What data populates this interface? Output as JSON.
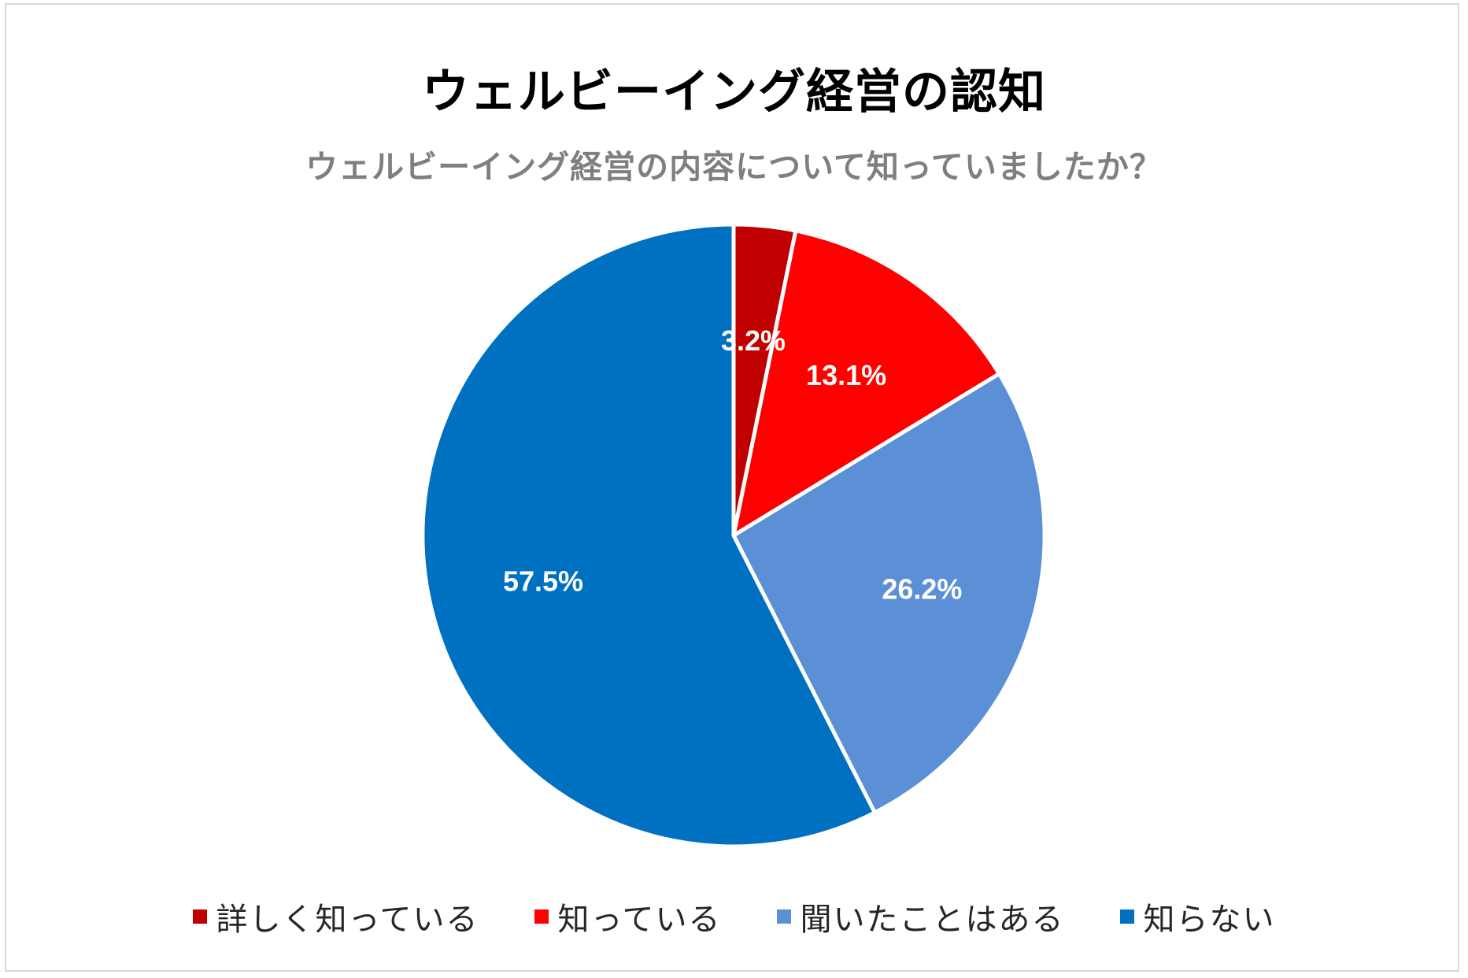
{
  "chart_data": {
    "type": "pie",
    "title": "ウェルビーイング経営の認知",
    "subtitle": "ウェルビーイング経営の内容について知っていましたか？",
    "categories": [
      "詳しく知っている",
      "知っている",
      "聞いたことはある",
      "知らない"
    ],
    "values": [
      3.2,
      13.1,
      26.2,
      57.5
    ],
    "labels": [
      "3.2%",
      "13.1%",
      "26.2%",
      "57.5%"
    ],
    "colors": [
      "#c00000",
      "#ff0000",
      "#5b8fd6",
      "#0070c0"
    ],
    "legend_position": "bottom",
    "start": "12 o'clock, clockwise"
  }
}
